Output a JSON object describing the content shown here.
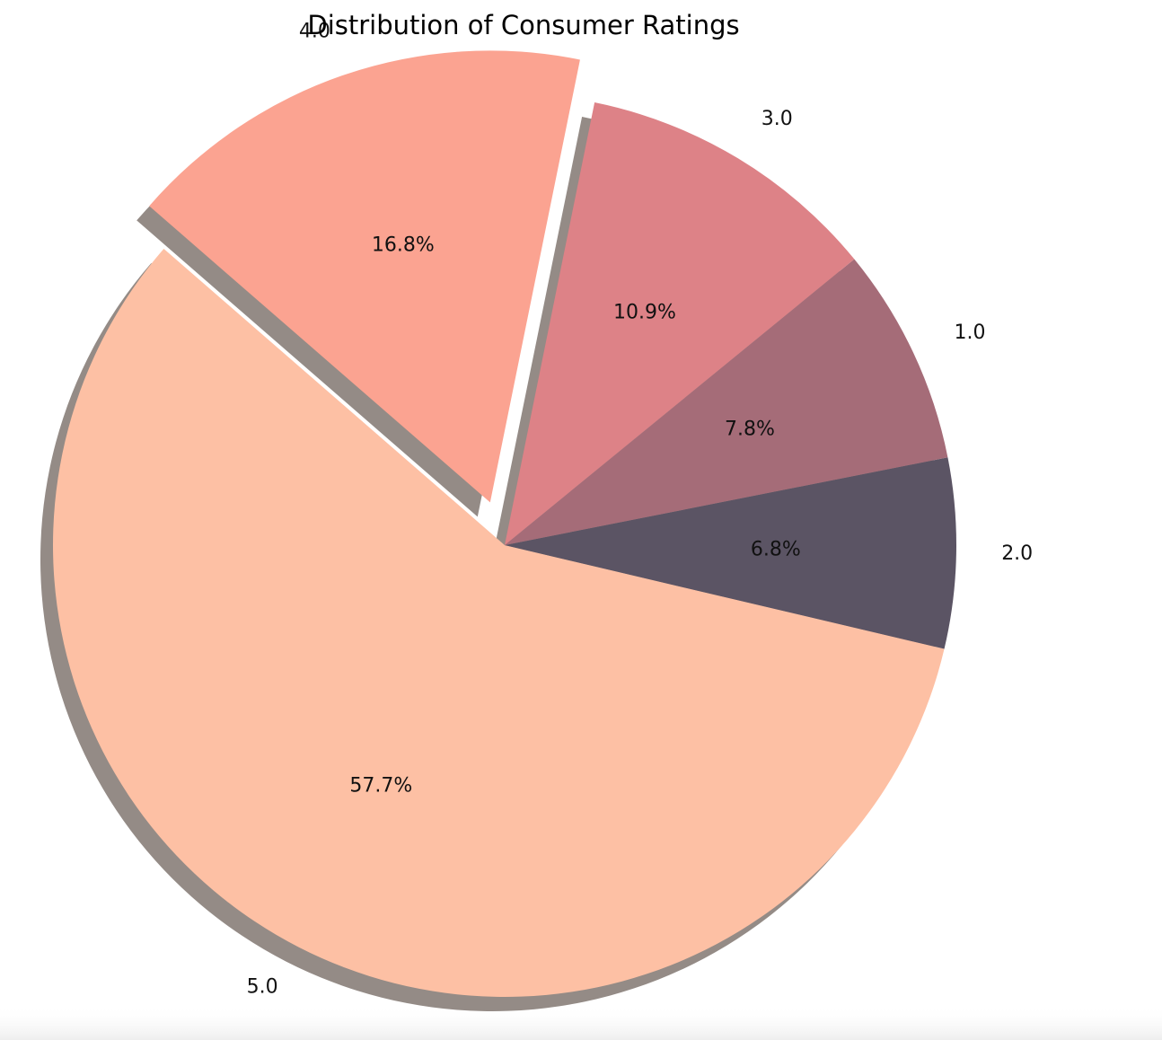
{
  "chart_data": {
    "type": "pie",
    "title": "Distribution of Consumer Ratings",
    "start_angle_deg": 139,
    "direction": "counterclockwise",
    "categories": [
      "5.0",
      "2.0",
      "1.0",
      "3.0",
      "4.0"
    ],
    "values": [
      57.7,
      6.8,
      7.8,
      10.9,
      16.8
    ],
    "percent_labels": [
      "57.7%",
      "6.8%",
      "7.8%",
      "10.9%",
      "16.8%"
    ],
    "explode": [
      0,
      0,
      0,
      0,
      0.1
    ],
    "colors": [
      "#FDC0A4",
      "#5B5464",
      "#A56C78",
      "#DD8287",
      "#FBA391"
    ],
    "shadow": true,
    "shadow_color": "#948B86",
    "background": "#FFFFFF"
  }
}
